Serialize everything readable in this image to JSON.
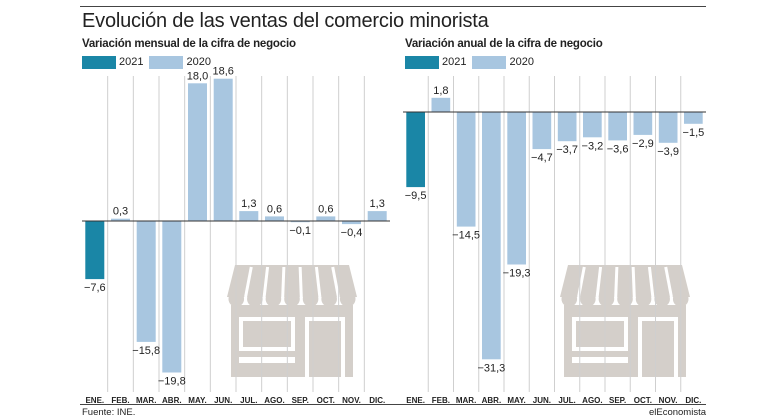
{
  "header": {
    "title": "Evolución de las ventas del comercio minorista"
  },
  "footer": {
    "source": "Fuente: INE.",
    "brand": "elEconomista"
  },
  "colors": {
    "series_2021": "#1a86a6",
    "series_2020": "#a8c6e0",
    "axis": "#333333",
    "grid": "#cfcfcf",
    "store_icon": "#d4cfca"
  },
  "chart_data": [
    {
      "type": "bar",
      "title": "Variación mensual de la cifra de negocio",
      "categories": [
        "ENE.",
        "FEB.",
        "MAR.",
        "ABR.",
        "MAY.",
        "JUN.",
        "JUL.",
        "AGO.",
        "SEP.",
        "OCT.",
        "NOV.",
        "DIC."
      ],
      "series": [
        {
          "name": "2021",
          "values": [
            -7.6,
            null,
            null,
            null,
            null,
            null,
            null,
            null,
            null,
            null,
            null,
            null
          ]
        },
        {
          "name": "2020",
          "values": [
            null,
            0.3,
            -15.8,
            -19.8,
            18.0,
            18.6,
            1.3,
            0.6,
            -0.1,
            0.6,
            -0.4,
            1.3
          ]
        }
      ],
      "labels": [
        "−7,6",
        "0,3",
        "−15,8",
        "−19,8",
        "18,0",
        "18,6",
        "1,3",
        "0,6",
        "−0,1",
        "0,6",
        "−0,4",
        "1,3"
      ],
      "ylim": [
        -19.8,
        18.6
      ],
      "grid": true,
      "legend": "top-left"
    },
    {
      "type": "bar",
      "title": "Variación anual de la cifra de negocio",
      "categories": [
        "ENE.",
        "FEB.",
        "MAR.",
        "ABR.",
        "MAY.",
        "JUN.",
        "JUL.",
        "AGO.",
        "SEP.",
        "OCT.",
        "NOV.",
        "DIC."
      ],
      "series": [
        {
          "name": "2021",
          "values": [
            -9.5,
            null,
            null,
            null,
            null,
            null,
            null,
            null,
            null,
            null,
            null,
            null
          ]
        },
        {
          "name": "2020",
          "values": [
            null,
            1.8,
            -14.5,
            -31.3,
            -19.3,
            -4.7,
            -3.7,
            -3.2,
            -3.6,
            -2.9,
            -3.9,
            -1.5
          ]
        }
      ],
      "labels": [
        "−9,5",
        "1,8",
        "−14,5",
        "−31,3",
        "−19,3",
        "−4,7",
        "−3,7",
        "−3,2",
        "−3,6",
        "−2,9",
        "−3,9",
        "−1,5"
      ],
      "ylim": [
        -31.3,
        1.8
      ],
      "grid": true,
      "legend": "top-left"
    }
  ]
}
